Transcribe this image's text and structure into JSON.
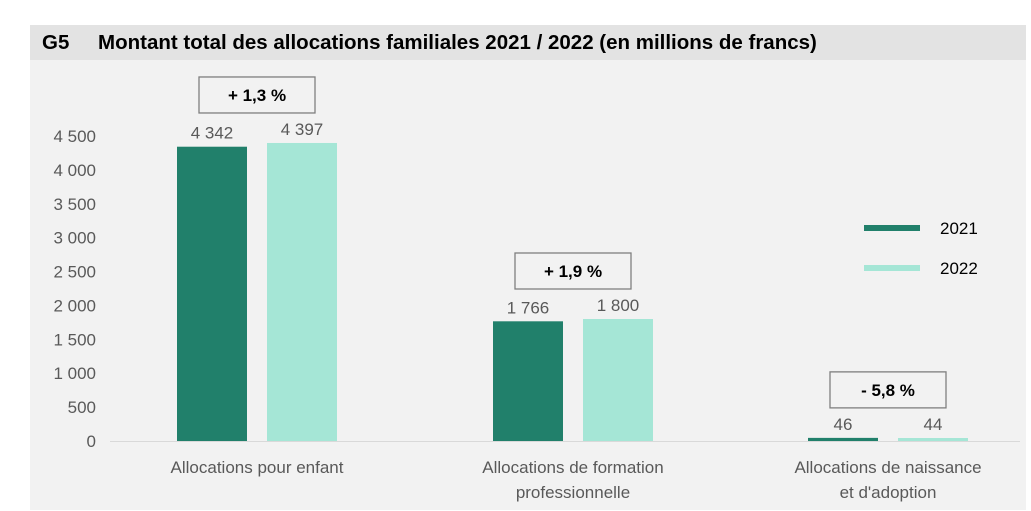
{
  "chart_data": {
    "type": "bar",
    "title_id": "G5",
    "title": "Montant total des allocations familiales 2021 / 2022 (en millions de francs)",
    "categories": [
      [
        "Allocations pour enfant"
      ],
      [
        "Allocations de formation",
        "professionnelle"
      ],
      [
        "Allocations de naissance",
        "et d'adoption"
      ]
    ],
    "series": [
      {
        "name": "2021",
        "color": "#21806b",
        "values": [
          4342,
          1766,
          46
        ],
        "labels": [
          "4 342",
          "1 766",
          "46"
        ]
      },
      {
        "name": "2022",
        "color": "#a5e6d6",
        "values": [
          4397,
          1800,
          44
        ],
        "labels": [
          "4 397",
          "1 800",
          "44"
        ]
      }
    ],
    "annotations": [
      "+ 1,3 %",
      "+ 1,9 %",
      "- 5,8 %"
    ],
    "yticks": [
      0,
      500,
      1000,
      1500,
      2000,
      2500,
      3000,
      3500,
      4000,
      4500
    ],
    "ytick_labels": [
      "0",
      "500",
      "1 000",
      "1 500",
      "2 000",
      "2 500",
      "3 000",
      "3 500",
      "4 000",
      "4 500"
    ],
    "ylim": [
      0,
      4500
    ],
    "legend_position": "right",
    "grid": false,
    "colors": {
      "background": "#f2f2f2",
      "title_bar": "#e3e3e3",
      "axis": "#d9d9d9",
      "annotation_border": "#7f7f7f"
    }
  }
}
